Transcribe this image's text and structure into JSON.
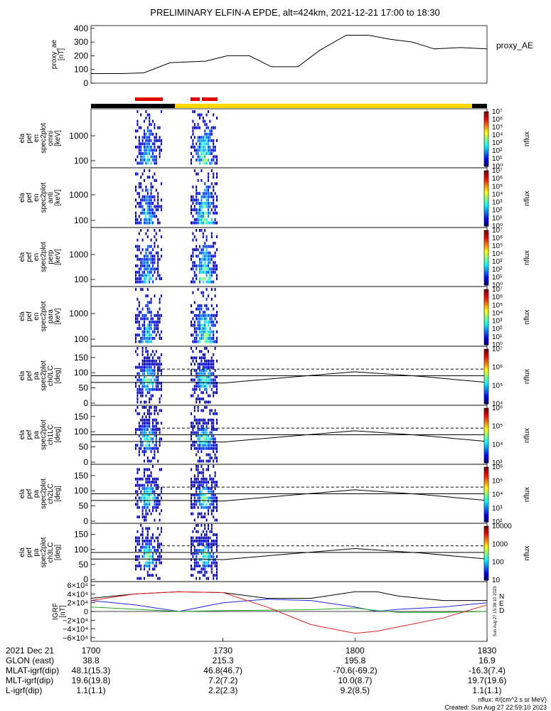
{
  "title": "PRELIMINARY ELFIN-A EPDE, alt=424km, 2021-12-21 17:00 to 18:30",
  "ae_panel": {
    "ylabel_lines": [
      "proxy_ae",
      "[nT]"
    ],
    "yticks": [
      "0",
      "100",
      "200",
      "300",
      "400"
    ],
    "legend": "proxy_AE",
    "ylim": [
      0,
      420
    ],
    "x_minutes": [
      0,
      7,
      12,
      18,
      26,
      31,
      36,
      41,
      47,
      52,
      58,
      63,
      68,
      73,
      78,
      84,
      90
    ],
    "values": [
      70,
      70,
      75,
      150,
      160,
      200,
      200,
      120,
      120,
      240,
      350,
      350,
      320,
      300,
      250,
      260,
      250
    ]
  },
  "status_bars": {
    "science_zone": "red",
    "orbit_colors": [
      "black",
      "yellow",
      "black"
    ]
  },
  "spectra_panels": [
    {
      "ylabel_lines": [
        "ela",
        "pef",
        "en",
        "spec2plot",
        "omni",
        "[keV]"
      ],
      "yticks": [
        "100",
        "1000"
      ],
      "cbar_ticks": [
        "10⁰",
        "10¹",
        "10²",
        "10³",
        "10⁴",
        "10⁵",
        "10⁶",
        "10⁷"
      ],
      "cbar_label": "nflux"
    },
    {
      "ylabel_lines": [
        "ela",
        "pef",
        "en",
        "spec2plot",
        "anti",
        "[keV]"
      ],
      "yticks": [
        "100",
        "1000"
      ],
      "cbar_ticks": [
        "10⁰",
        "10¹",
        "10²",
        "10³",
        "10⁴",
        "10⁵",
        "10⁶",
        "10⁷"
      ],
      "cbar_label": "nflux"
    },
    {
      "ylabel_lines": [
        "ela",
        "pef",
        "en",
        "spec2plot",
        "perp",
        "[keV]"
      ],
      "yticks": [
        "100",
        "1000"
      ],
      "cbar_ticks": [
        "10⁰",
        "10¹",
        "10²",
        "10³",
        "10⁴",
        "10⁵",
        "10⁶",
        "10⁷"
      ],
      "cbar_label": "nflux"
    },
    {
      "ylabel_lines": [
        "ela",
        "pef",
        "en",
        "spec2plot",
        "para",
        "[keV]"
      ],
      "yticks": [
        "100",
        "1000"
      ],
      "cbar_ticks": [
        "10⁰",
        "10¹",
        "10²",
        "10³",
        "10⁴",
        "10⁵",
        "10⁶",
        "10⁷"
      ],
      "cbar_label": "nflux"
    }
  ],
  "pitch_panels": [
    {
      "ylabel_lines": [
        "ela",
        "pef",
        "pa",
        "spec2plot",
        "ch0LC",
        "[deg]"
      ],
      "yticks": [
        "0",
        "50",
        "100",
        "150"
      ],
      "cbar_ticks": [
        "10⁴",
        "10⁵",
        "10⁶",
        "10⁷"
      ],
      "cbar_label": "nflux"
    },
    {
      "ylabel_lines": [
        "ela",
        "pef",
        "pa",
        "spec2plot",
        "ch1LC",
        "[deg]"
      ],
      "yticks": [
        "0",
        "50",
        "100",
        "150"
      ],
      "cbar_ticks": [
        "10³",
        "10⁴",
        "10⁵",
        "10⁶"
      ],
      "cbar_label": "nflux"
    },
    {
      "ylabel_lines": [
        "ela",
        "pef",
        "pa",
        "spec2plot",
        "ch2LC",
        "[deg]"
      ],
      "yticks": [
        "0",
        "50",
        "100",
        "150"
      ],
      "cbar_ticks": [
        "10²",
        "10³",
        "10⁴",
        "10⁵",
        "10⁶"
      ],
      "cbar_label": "nflux"
    },
    {
      "ylabel_lines": [
        "ela",
        "pef",
        "pa",
        "spec2plot",
        "ch3LC",
        "[deg]"
      ],
      "yticks": [
        "0",
        "50",
        "100",
        "150"
      ],
      "cbar_ticks": [
        "10",
        "100",
        "1000",
        "10000"
      ],
      "cbar_label": "nflux"
    }
  ],
  "igrf_panel": {
    "ylabel_lines": [
      "IGRF",
      "[nT]"
    ],
    "yticks": [
      "−6×10⁴",
      "−4×10⁴",
      "−2×10⁴",
      "0",
      "2×10⁴",
      "4×10⁴",
      "6×10⁴"
    ],
    "legend": [
      "N",
      "E",
      "D"
    ],
    "legend_colors": [
      "#2222dd",
      "#22aa22",
      "#dd2222"
    ],
    "side_stamp": "Sun Aug 27 15:38:10 2023"
  },
  "chart_data": {
    "type": "line",
    "title": "PRELIMINARY ELFIN-A EPDE, alt=424km, 2021-12-21 17:00 to 18:30",
    "x_axis": {
      "range_minutes": [
        0,
        90
      ],
      "ticks": [
        "1700",
        "1730",
        "1800",
        "1830"
      ]
    },
    "series": [
      {
        "name": "proxy_AE",
        "x": [
          0,
          7,
          12,
          18,
          26,
          31,
          36,
          41,
          47,
          52,
          58,
          63,
          68,
          73,
          78,
          84,
          90
        ],
        "values": [
          70,
          70,
          75,
          150,
          160,
          200,
          200,
          120,
          120,
          240,
          350,
          350,
          320,
          300,
          250,
          260,
          250
        ]
      },
      {
        "name": "IGRF total",
        "x": [
          0,
          10,
          20,
          30,
          40,
          50,
          60,
          65,
          70,
          80,
          90
        ],
        "values": [
          30000,
          40000,
          45000,
          43000,
          30000,
          30000,
          45000,
          45000,
          35000,
          25000,
          25000
        ]
      },
      {
        "name": "IGRF N",
        "x": [
          0,
          10,
          20,
          30,
          40,
          50,
          60,
          65,
          70,
          80,
          90
        ],
        "values": [
          25000,
          15000,
          0,
          20000,
          28000,
          25000,
          10000,
          0,
          5000,
          10000,
          20000
        ]
      },
      {
        "name": "IGRF E",
        "x": [
          0,
          10,
          20,
          30,
          40,
          50,
          60,
          65,
          70,
          80,
          90
        ],
        "values": [
          10000,
          5000,
          0,
          2000,
          3000,
          4000,
          8000,
          2000,
          -2000,
          -2000,
          0
        ]
      },
      {
        "name": "IGRF D",
        "x": [
          0,
          10,
          20,
          30,
          40,
          50,
          60,
          65,
          70,
          80,
          90
        ],
        "values": [
          25000,
          40000,
          45000,
          43000,
          10000,
          -30000,
          -50000,
          -45000,
          -35000,
          -15000,
          15000
        ]
      }
    ]
  },
  "footer": {
    "rows": [
      {
        "label": "2021 Dec 21",
        "values": [
          "1700",
          "1730",
          "1800",
          "1830"
        ]
      },
      {
        "label": "GLON (east)",
        "values": [
          "38.8",
          "215.3",
          "195.8",
          "16.9"
        ]
      },
      {
        "label": "MLAT-igrf(dip)",
        "values": [
          "48.1(15.3)",
          "46.8(46.7)",
          "-70.6(-69.2)",
          "-16.3(7.4)"
        ]
      },
      {
        "label": "MLT-igrf(dip)",
        "values": [
          "19.6(19.8)",
          "7.2(7.2)",
          "10.0(8.7)",
          "19.7(19.6)"
        ]
      },
      {
        "label": "L-igrf(dip)",
        "values": [
          "1.1(1.1)",
          "2.2(2.3)",
          "9.2(8.5)",
          "1.1(1.1)"
        ]
      }
    ],
    "units_note": "nflux: #/(cm^2 s sr MeV)",
    "created": "Created: Sun Aug 27 22:59:10 2023"
  }
}
